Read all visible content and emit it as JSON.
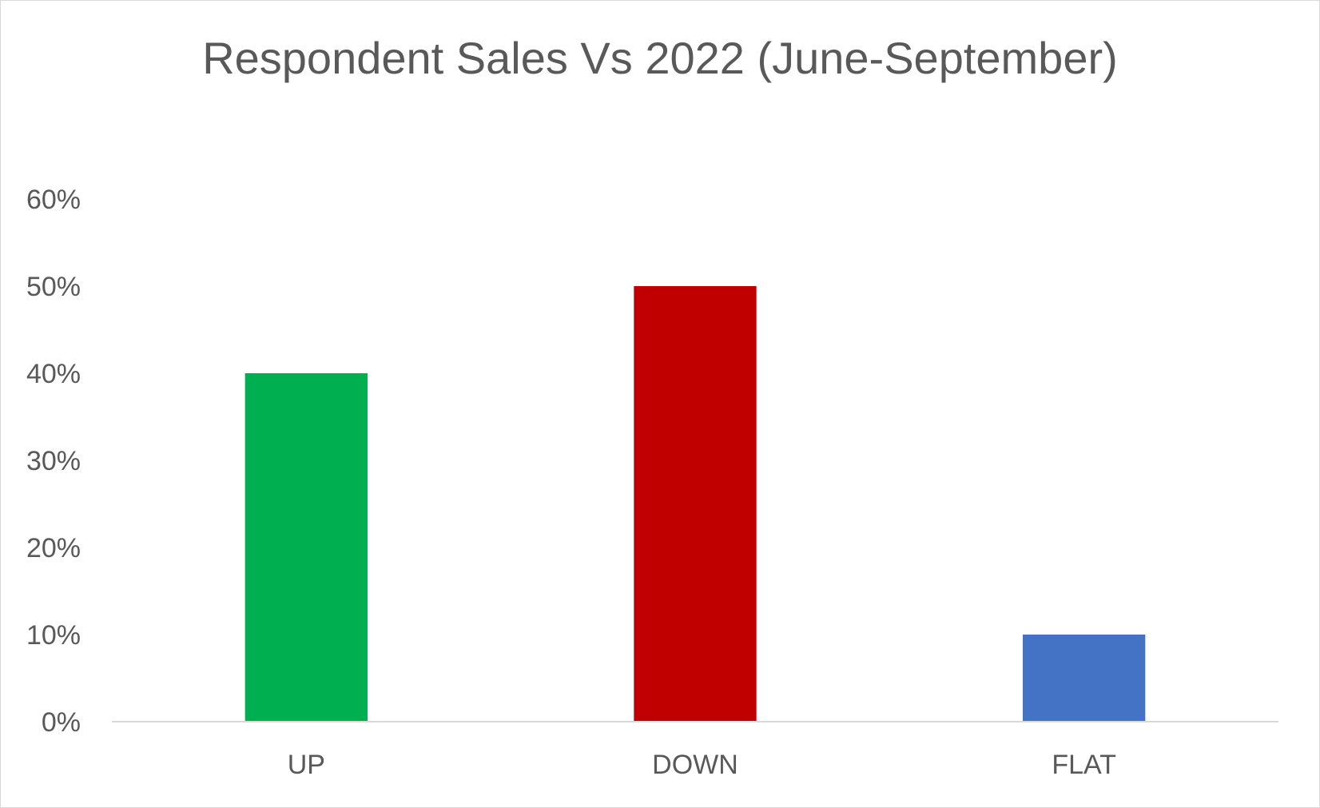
{
  "chart_data": {
    "type": "bar",
    "title": "Respondent Sales Vs 2022 (June-September)",
    "xlabel": "",
    "ylabel": "",
    "categories": [
      "UP",
      "DOWN",
      "FLAT"
    ],
    "values": [
      0.4,
      0.5,
      0.1
    ],
    "bar_colors": [
      "#00b050",
      "#c00000",
      "#4472c4"
    ],
    "ylim": [
      0,
      0.6
    ],
    "yticks": [
      0,
      0.1,
      0.2,
      0.3,
      0.4,
      0.5,
      0.6
    ],
    "ytick_labels": [
      "0%",
      "10%",
      "20%",
      "30%",
      "40%",
      "50%",
      "60%"
    ],
    "grid": false,
    "legend": "none"
  }
}
